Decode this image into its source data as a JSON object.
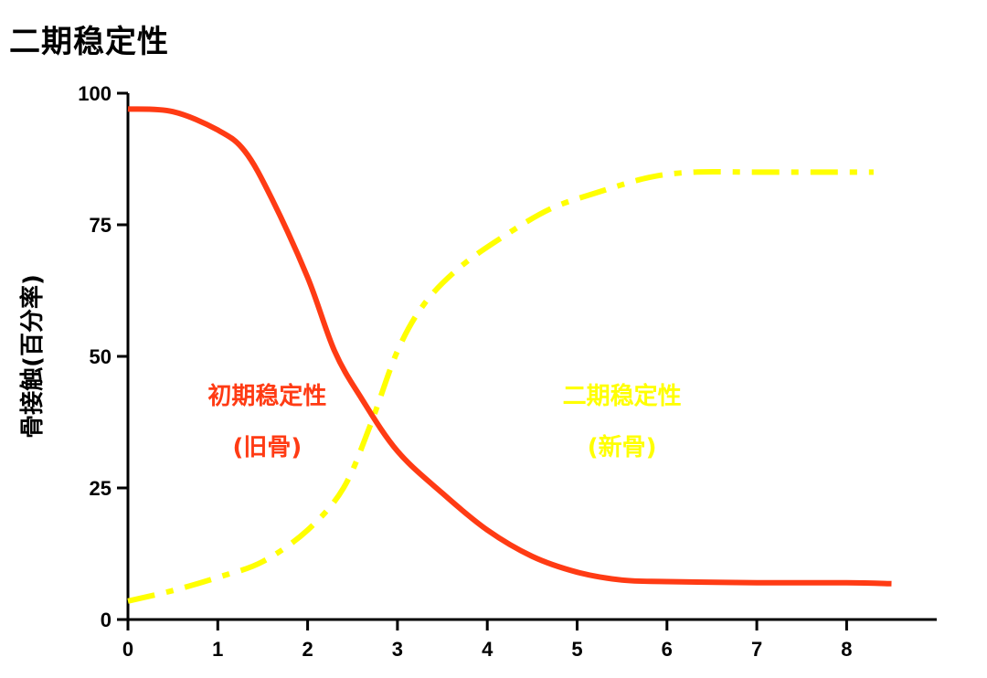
{
  "chart_data": {
    "type": "line",
    "title": "二期稳定性",
    "xlabel": "",
    "ylabel": "骨接触(百分率)",
    "xlim": [
      0,
      9
    ],
    "ylim": [
      0,
      100
    ],
    "xticks": [
      "0",
      "1",
      "2",
      "3",
      "4",
      "5",
      "6",
      "7",
      "8"
    ],
    "yticks": [
      "0",
      "25",
      "50",
      "75",
      "100"
    ],
    "grid": false,
    "series": [
      {
        "name": "初期稳定性 (旧骨)",
        "color": "#ff3b14",
        "style": "solid",
        "x": [
          0,
          0.5,
          1.0,
          1.3,
          1.6,
          2.0,
          2.3,
          2.6,
          3.0,
          3.5,
          4.0,
          4.5,
          5.0,
          5.5,
          6.0,
          7.0,
          8.0,
          8.5
        ],
        "y": [
          97,
          96.5,
          93,
          89,
          80,
          65,
          51,
          42,
          32,
          24,
          17,
          12,
          9,
          7.5,
          7.2,
          7,
          7,
          6.8
        ]
      },
      {
        "name": "二期稳定性 (新骨)",
        "color": "#ffff00",
        "style": "dash-dot",
        "x": [
          0,
          0.5,
          1.0,
          1.5,
          2.0,
          2.4,
          2.7,
          3.0,
          3.3,
          3.7,
          4.2,
          4.7,
          5.2,
          5.8,
          6.3,
          7.0,
          8.0,
          8.3
        ],
        "y": [
          3.5,
          5.5,
          8,
          11,
          17,
          25,
          37,
          51,
          60,
          67,
          73,
          78,
          81,
          84,
          85,
          85,
          85,
          85
        ]
      }
    ],
    "annotations": [
      {
        "line1": "初期稳定性",
        "line2": "(旧骨)",
        "color": "#ff3b14",
        "x": 1.55,
        "y": 41
      },
      {
        "line1": "二期稳定性",
        "line2": "(新骨)",
        "color": "#ffff00",
        "x": 5.5,
        "y": 41
      }
    ]
  }
}
